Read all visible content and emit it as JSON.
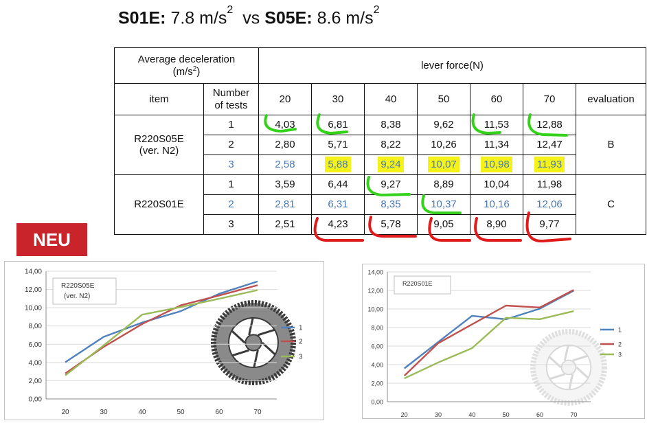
{
  "headline": {
    "left_name": "S01E:",
    "left_value": "7.8 m/s",
    "left_exp": "2",
    "vs": "vs",
    "right_name": "S05E:",
    "right_value": "8.6 m/s",
    "right_exp": "2"
  },
  "table": {
    "corner_line1": "Average deceleration",
    "corner_line2": "(m/s",
    "corner_exp": "2",
    "corner_close": ")",
    "force_header": "lever force(N)",
    "col_item": "item",
    "col_tests_line1": "Number",
    "col_tests_line2": "of tests",
    "forces": [
      "20",
      "30",
      "40",
      "50",
      "60",
      "70"
    ],
    "col_eval": "evaluation",
    "groups": [
      {
        "name_line1": "R220S05E",
        "name_line2": "(ver. N2)",
        "evaluation": "B",
        "rows": [
          {
            "test": "1",
            "values": [
              "4,03",
              "6,81",
              "8,38",
              "9,62",
              "11,53",
              "12,88"
            ]
          },
          {
            "test": "2",
            "values": [
              "2,80",
              "5,71",
              "8,22",
              "10,26",
              "11,34",
              "12,47"
            ]
          },
          {
            "test": "3",
            "values": [
              "2,58",
              "5,88",
              "9,24",
              "10,07",
              "10,98",
              "11,93"
            ]
          }
        ]
      },
      {
        "name_line1": "R220S01E",
        "name_line2": "",
        "evaluation": "C",
        "rows": [
          {
            "test": "1",
            "values": [
              "3,59",
              "6,44",
              "9,27",
              "8,89",
              "10,04",
              "11,98"
            ]
          },
          {
            "test": "2",
            "values": [
              "2,81",
              "6,31",
              "8,35",
              "10,37",
              "10,16",
              "12,06"
            ]
          },
          {
            "test": "3",
            "values": [
              "2,51",
              "4,23",
              "5,78",
              "9,05",
              "8,90",
              "9,77"
            ]
          }
        ]
      }
    ]
  },
  "badge": "NEU",
  "colors": {
    "series1": "#4f81bd",
    "series2": "#c0504d",
    "series3": "#9bbb59",
    "badge": "#c9242b",
    "marker_green": "#35d21c",
    "marker_red": "#e01b1b",
    "highlight_yellow": "#f5f21a",
    "blue_text": "#4a78b5"
  },
  "chart_data": [
    {
      "type": "line",
      "title_line1": "R220S05E",
      "title_line2": "(ver. N2)",
      "x": [
        20,
        30,
        40,
        50,
        60,
        70
      ],
      "x_tick_labels": [
        "20",
        "30",
        "40",
        "50",
        "60",
        "70"
      ],
      "y_tick_labels": [
        "0,00",
        "2,00",
        "4,00",
        "6,00",
        "8,00",
        "10,00",
        "12,00",
        "14,00"
      ],
      "ylim": [
        0,
        14
      ],
      "grid": true,
      "legend": "right",
      "series": [
        {
          "name": "1",
          "values": [
            4.03,
            6.81,
            8.38,
            9.62,
            11.53,
            12.88
          ]
        },
        {
          "name": "2",
          "values": [
            2.8,
            5.71,
            8.22,
            10.26,
            11.34,
            12.47
          ]
        },
        {
          "name": "3",
          "values": [
            2.58,
            5.88,
            9.24,
            10.07,
            10.98,
            11.93
          ]
        }
      ],
      "image_icon": "dark-brake-rotor"
    },
    {
      "type": "line",
      "title_line1": "R220S01E",
      "title_line2": "",
      "x": [
        20,
        30,
        40,
        50,
        60,
        70
      ],
      "x_tick_labels": [
        "20",
        "30",
        "40",
        "50",
        "60",
        "70"
      ],
      "y_tick_labels": [
        "0,00",
        "2,00",
        "4,00",
        "6,00",
        "8,00",
        "10,00",
        "12,00",
        "14,00"
      ],
      "ylim": [
        0,
        14
      ],
      "grid": true,
      "legend": "right",
      "series": [
        {
          "name": "1",
          "values": [
            3.59,
            6.44,
            9.27,
            8.89,
            10.04,
            11.98
          ]
        },
        {
          "name": "2",
          "values": [
            2.81,
            6.31,
            8.35,
            10.37,
            10.16,
            12.06
          ]
        },
        {
          "name": "3",
          "values": [
            2.51,
            4.23,
            5.78,
            9.05,
            8.9,
            9.77
          ]
        }
      ],
      "image_icon": "faded-brake-rotor"
    }
  ]
}
